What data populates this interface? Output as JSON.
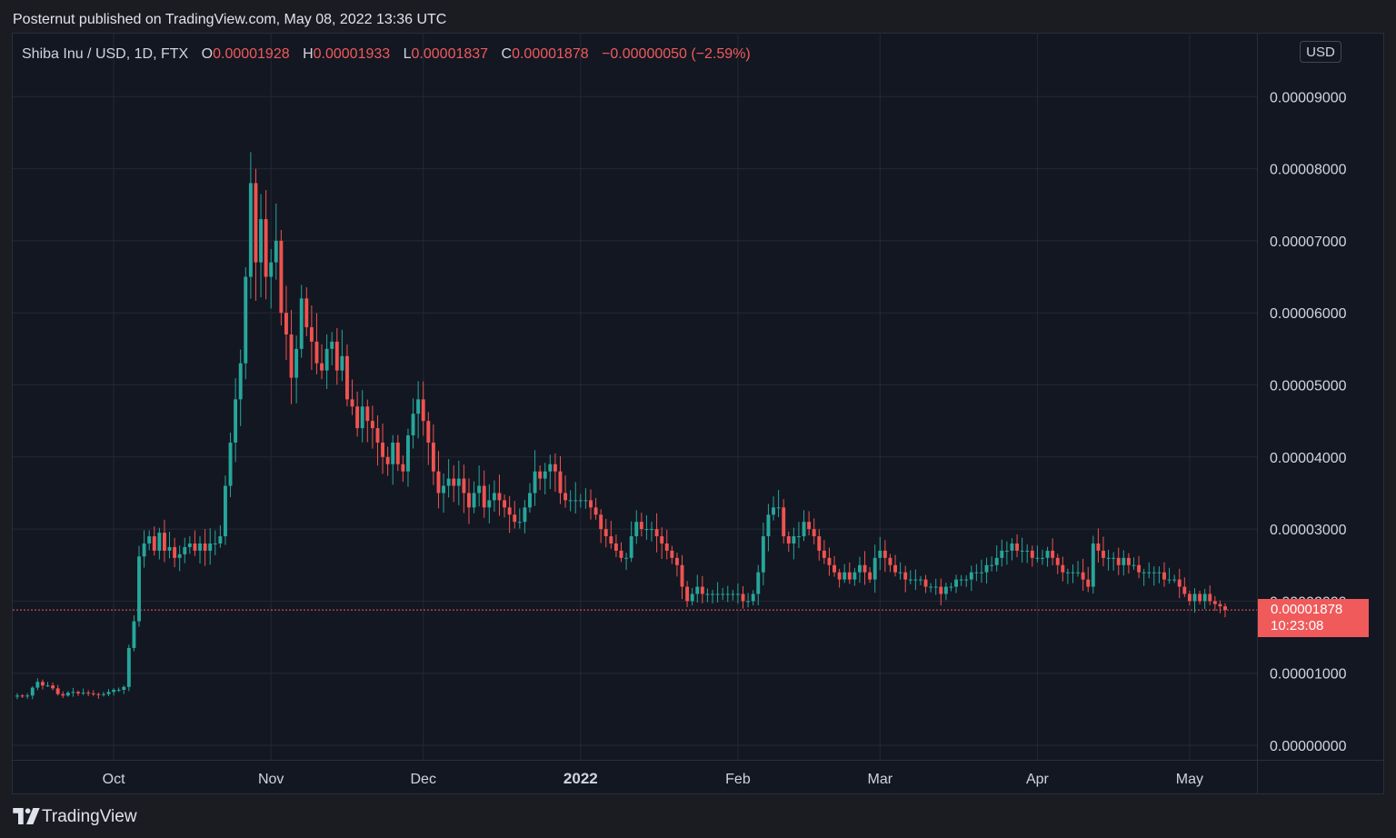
{
  "header": {
    "published_text": "Posternut published on TradingView.com, May 08, 2022 13:36 UTC"
  },
  "legend": {
    "symbol": "Shiba Inu / USD, 1D, FTX",
    "open_label": "O",
    "open_value": "0.00001928",
    "high_label": "H",
    "high_value": "0.00001933",
    "low_label": "L",
    "low_value": "0.00001837",
    "close_label": "C",
    "close_value": "0.00001878",
    "change": "−0.00000050 (−2.59%)"
  },
  "currency_button": "USD",
  "price_badge": {
    "price": "0.00001878",
    "countdown": "10:23:08"
  },
  "footer": {
    "brand": "TradingView",
    "logo_icon": "tradingview-logo-icon"
  },
  "colors": {
    "up": "#26a69a",
    "down": "#ef5350",
    "background": "#131722",
    "grid": "#242836",
    "last_price_line": "#f05a5a"
  },
  "chart_data": {
    "type": "candlestick",
    "title": "",
    "symbol": "Shiba Inu / USD, 1D, FTX",
    "currency": "USD",
    "ylim": [
      0,
      0.0001
    ],
    "y_ticks": [
      0,
      1e-05,
      2e-05,
      3e-05,
      4e-05,
      5e-05,
      6e-05,
      7e-05,
      8e-05,
      9e-05
    ],
    "y_tick_labels": [
      "0.00000000",
      "0.00001000",
      "0.00002000",
      "0.00003000",
      "0.00004000",
      "0.00005000",
      "0.00006000",
      "0.00007000",
      "0.00008000",
      "0.00009000"
    ],
    "x_ticks": [
      {
        "label": "Oct",
        "date": "2021-10-01",
        "bold": false
      },
      {
        "label": "Nov",
        "date": "2021-11-01",
        "bold": false
      },
      {
        "label": "Dec",
        "date": "2021-12-01",
        "bold": false
      },
      {
        "label": "2022",
        "date": "2022-01-01",
        "bold": true
      },
      {
        "label": "Feb",
        "date": "2022-02-01",
        "bold": false
      },
      {
        "label": "Mar",
        "date": "2022-03-01",
        "bold": false
      },
      {
        "label": "Apr",
        "date": "2022-04-01",
        "bold": false
      },
      {
        "label": "May",
        "date": "2022-05-01",
        "bold": false
      }
    ],
    "x_range": [
      "2021-09-12",
      "2022-05-08"
    ],
    "last_close": 1.878e-05,
    "grid": true,
    "close_series": [
      [
        "2021-09-12",
        6.9e-06
      ],
      [
        "2021-09-13",
        6.8e-06
      ],
      [
        "2021-09-14",
        6.9e-06
      ],
      [
        "2021-09-15",
        8e-06
      ],
      [
        "2021-09-16",
        8.8e-06
      ],
      [
        "2021-09-17",
        8.3e-06
      ],
      [
        "2021-09-18",
        8.3e-06
      ],
      [
        "2021-09-19",
        7.9e-06
      ],
      [
        "2021-09-20",
        7.1e-06
      ],
      [
        "2021-09-21",
        6.9e-06
      ],
      [
        "2021-09-22",
        7.3e-06
      ],
      [
        "2021-09-23",
        7.4e-06
      ],
      [
        "2021-09-24",
        7.2e-06
      ],
      [
        "2021-09-25",
        7.3e-06
      ],
      [
        "2021-09-26",
        7.2e-06
      ],
      [
        "2021-09-27",
        7.1e-06
      ],
      [
        "2021-09-28",
        7e-06
      ],
      [
        "2021-09-29",
        7.1e-06
      ],
      [
        "2021-09-30",
        7.4e-06
      ],
      [
        "2021-10-01",
        7.7e-06
      ],
      [
        "2021-10-02",
        7.7e-06
      ],
      [
        "2021-10-03",
        8.1e-06
      ],
      [
        "2021-10-04",
        1.35e-05
      ],
      [
        "2021-10-05",
        1.72e-05
      ],
      [
        "2021-10-06",
        2.62e-05
      ],
      [
        "2021-10-07",
        2.8e-05
      ],
      [
        "2021-10-08",
        2.9e-05
      ],
      [
        "2021-10-09",
        2.7e-05
      ],
      [
        "2021-10-10",
        2.95e-05
      ],
      [
        "2021-10-11",
        2.7e-05
      ],
      [
        "2021-10-12",
        2.75e-05
      ],
      [
        "2021-10-13",
        2.6e-05
      ],
      [
        "2021-10-14",
        2.65e-05
      ],
      [
        "2021-10-15",
        2.75e-05
      ],
      [
        "2021-10-16",
        2.8e-05
      ],
      [
        "2021-10-17",
        2.7e-05
      ],
      [
        "2021-10-18",
        2.8e-05
      ],
      [
        "2021-10-19",
        2.7e-05
      ],
      [
        "2021-10-20",
        2.8e-05
      ],
      [
        "2021-10-21",
        2.8e-05
      ],
      [
        "2021-10-22",
        2.9e-05
      ],
      [
        "2021-10-23",
        3.6e-05
      ],
      [
        "2021-10-24",
        4.2e-05
      ],
      [
        "2021-10-25",
        4.8e-05
      ],
      [
        "2021-10-26",
        5.3e-05
      ],
      [
        "2021-10-27",
        6.5e-05
      ],
      [
        "2021-10-28",
        7.8e-05
      ],
      [
        "2021-10-29",
        6.7e-05
      ],
      [
        "2021-10-30",
        7.3e-05
      ],
      [
        "2021-10-31",
        6.5e-05
      ],
      [
        "2021-11-01",
        6.7e-05
      ],
      [
        "2021-11-02",
        7e-05
      ],
      [
        "2021-11-03",
        6e-05
      ],
      [
        "2021-11-04",
        5.7e-05
      ],
      [
        "2021-11-05",
        5.1e-05
      ],
      [
        "2021-11-06",
        5.5e-05
      ],
      [
        "2021-11-07",
        6.2e-05
      ],
      [
        "2021-11-08",
        5.8e-05
      ],
      [
        "2021-11-09",
        5.6e-05
      ],
      [
        "2021-11-10",
        5.3e-05
      ],
      [
        "2021-11-11",
        5.2e-05
      ],
      [
        "2021-11-12",
        5.5e-05
      ],
      [
        "2021-11-13",
        5.6e-05
      ],
      [
        "2021-11-14",
        5.2e-05
      ],
      [
        "2021-11-15",
        5.4e-05
      ],
      [
        "2021-11-16",
        4.8e-05
      ],
      [
        "2021-11-17",
        4.7e-05
      ],
      [
        "2021-11-18",
        4.4e-05
      ],
      [
        "2021-11-19",
        4.7e-05
      ],
      [
        "2021-11-20",
        4.5e-05
      ],
      [
        "2021-11-21",
        4.4e-05
      ],
      [
        "2021-11-22",
        4.2e-05
      ],
      [
        "2021-11-23",
        4e-05
      ],
      [
        "2021-11-24",
        3.9e-05
      ],
      [
        "2021-11-25",
        4.2e-05
      ],
      [
        "2021-11-26",
        3.9e-05
      ],
      [
        "2021-11-27",
        3.8e-05
      ],
      [
        "2021-11-28",
        4.3e-05
      ],
      [
        "2021-11-29",
        4.6e-05
      ],
      [
        "2021-11-30",
        4.8e-05
      ],
      [
        "2021-12-01",
        4.5e-05
      ],
      [
        "2021-12-02",
        4.2e-05
      ],
      [
        "2021-12-03",
        3.8e-05
      ],
      [
        "2021-12-04",
        3.5e-05
      ],
      [
        "2021-12-05",
        3.6e-05
      ],
      [
        "2021-12-06",
        3.7e-05
      ],
      [
        "2021-12-07",
        3.6e-05
      ],
      [
        "2021-12-08",
        3.7e-05
      ],
      [
        "2021-12-09",
        3.5e-05
      ],
      [
        "2021-12-10",
        3.3e-05
      ],
      [
        "2021-12-11",
        3.5e-05
      ],
      [
        "2021-12-12",
        3.6e-05
      ],
      [
        "2021-12-13",
        3.3e-05
      ],
      [
        "2021-12-14",
        3.4e-05
      ],
      [
        "2021-12-15",
        3.5e-05
      ],
      [
        "2021-12-16",
        3.4e-05
      ],
      [
        "2021-12-17",
        3.3e-05
      ],
      [
        "2021-12-18",
        3.2e-05
      ],
      [
        "2021-12-19",
        3.1e-05
      ],
      [
        "2021-12-20",
        3.1e-05
      ],
      [
        "2021-12-21",
        3.3e-05
      ],
      [
        "2021-12-22",
        3.5e-05
      ],
      [
        "2021-12-23",
        3.8e-05
      ],
      [
        "2021-12-24",
        3.7e-05
      ],
      [
        "2021-12-25",
        3.8e-05
      ],
      [
        "2021-12-26",
        3.9e-05
      ],
      [
        "2021-12-27",
        3.8e-05
      ],
      [
        "2021-12-28",
        3.5e-05
      ],
      [
        "2021-12-29",
        3.4e-05
      ],
      [
        "2021-12-30",
        3.4e-05
      ],
      [
        "2021-12-31",
        3.4e-05
      ],
      [
        "2022-01-01",
        3.4e-05
      ],
      [
        "2022-01-02",
        3.4e-05
      ],
      [
        "2022-01-03",
        3.3e-05
      ],
      [
        "2022-01-04",
        3.2e-05
      ],
      [
        "2022-01-05",
        3e-05
      ],
      [
        "2022-01-06",
        2.9e-05
      ],
      [
        "2022-01-07",
        2.8e-05
      ],
      [
        "2022-01-08",
        2.7e-05
      ],
      [
        "2022-01-09",
        2.6e-05
      ],
      [
        "2022-01-10",
        2.6e-05
      ],
      [
        "2022-01-11",
        2.9e-05
      ],
      [
        "2022-01-12",
        3.1e-05
      ],
      [
        "2022-01-13",
        3e-05
      ],
      [
        "2022-01-14",
        3e-05
      ],
      [
        "2022-01-15",
        3e-05
      ],
      [
        "2022-01-16",
        2.9e-05
      ],
      [
        "2022-01-17",
        2.8e-05
      ],
      [
        "2022-01-18",
        2.7e-05
      ],
      [
        "2022-01-19",
        2.6e-05
      ],
      [
        "2022-01-20",
        2.5e-05
      ],
      [
        "2022-01-21",
        2.2e-05
      ],
      [
        "2022-01-22",
        2e-05
      ],
      [
        "2022-01-23",
        2.1e-05
      ],
      [
        "2022-01-24",
        2.2e-05
      ],
      [
        "2022-01-25",
        2.1e-05
      ],
      [
        "2022-01-26",
        2.1e-05
      ],
      [
        "2022-01-27",
        2.1e-05
      ],
      [
        "2022-01-28",
        2.1e-05
      ],
      [
        "2022-01-29",
        2.1e-05
      ],
      [
        "2022-01-30",
        2.1e-05
      ],
      [
        "2022-01-31",
        2.1e-05
      ],
      [
        "2022-02-01",
        2.1e-05
      ],
      [
        "2022-02-02",
        2e-05
      ],
      [
        "2022-02-03",
        2e-05
      ],
      [
        "2022-02-04",
        2.1e-05
      ],
      [
        "2022-02-05",
        2.4e-05
      ],
      [
        "2022-02-06",
        2.9e-05
      ],
      [
        "2022-02-07",
        3.2e-05
      ],
      [
        "2022-02-08",
        3.3e-05
      ],
      [
        "2022-02-09",
        3.3e-05
      ],
      [
        "2022-02-10",
        2.9e-05
      ],
      [
        "2022-02-11",
        2.8e-05
      ],
      [
        "2022-02-12",
        2.9e-05
      ],
      [
        "2022-02-13",
        2.9e-05
      ],
      [
        "2022-02-14",
        3.1e-05
      ],
      [
        "2022-02-15",
        3e-05
      ],
      [
        "2022-02-16",
        2.9e-05
      ],
      [
        "2022-02-17",
        2.7e-05
      ],
      [
        "2022-02-18",
        2.6e-05
      ],
      [
        "2022-02-19",
        2.5e-05
      ],
      [
        "2022-02-20",
        2.4e-05
      ],
      [
        "2022-02-21",
        2.3e-05
      ],
      [
        "2022-02-22",
        2.4e-05
      ],
      [
        "2022-02-23",
        2.3e-05
      ],
      [
        "2022-02-24",
        2.4e-05
      ],
      [
        "2022-02-25",
        2.5e-05
      ],
      [
        "2022-02-26",
        2.4e-05
      ],
      [
        "2022-02-27",
        2.3e-05
      ],
      [
        "2022-02-28",
        2.6e-05
      ],
      [
        "2022-03-01",
        2.7e-05
      ],
      [
        "2022-03-02",
        2.6e-05
      ],
      [
        "2022-03-03",
        2.5e-05
      ],
      [
        "2022-03-04",
        2.4e-05
      ],
      [
        "2022-03-05",
        2.4e-05
      ],
      [
        "2022-03-06",
        2.3e-05
      ],
      [
        "2022-03-07",
        2.3e-05
      ],
      [
        "2022-03-08",
        2.3e-05
      ],
      [
        "2022-03-09",
        2.3e-05
      ],
      [
        "2022-03-10",
        2.2e-05
      ],
      [
        "2022-03-11",
        2.2e-05
      ],
      [
        "2022-03-12",
        2.2e-05
      ],
      [
        "2022-03-13",
        2.1e-05
      ],
      [
        "2022-03-14",
        2.2e-05
      ],
      [
        "2022-03-15",
        2.2e-05
      ],
      [
        "2022-03-16",
        2.3e-05
      ],
      [
        "2022-03-17",
        2.3e-05
      ],
      [
        "2022-03-18",
        2.3e-05
      ],
      [
        "2022-03-19",
        2.4e-05
      ],
      [
        "2022-03-20",
        2.4e-05
      ],
      [
        "2022-03-21",
        2.4e-05
      ],
      [
        "2022-03-22",
        2.5e-05
      ],
      [
        "2022-03-23",
        2.5e-05
      ],
      [
        "2022-03-24",
        2.6e-05
      ],
      [
        "2022-03-25",
        2.7e-05
      ],
      [
        "2022-03-26",
        2.7e-05
      ],
      [
        "2022-03-27",
        2.8e-05
      ],
      [
        "2022-03-28",
        2.7e-05
      ],
      [
        "2022-03-29",
        2.7e-05
      ],
      [
        "2022-03-30",
        2.7e-05
      ],
      [
        "2022-03-31",
        2.6e-05
      ],
      [
        "2022-04-01",
        2.6e-05
      ],
      [
        "2022-04-02",
        2.6e-05
      ],
      [
        "2022-04-03",
        2.7e-05
      ],
      [
        "2022-04-04",
        2.6e-05
      ],
      [
        "2022-04-05",
        2.5e-05
      ],
      [
        "2022-04-06",
        2.4e-05
      ],
      [
        "2022-04-07",
        2.4e-05
      ],
      [
        "2022-04-08",
        2.4e-05
      ],
      [
        "2022-04-09",
        2.4e-05
      ],
      [
        "2022-04-10",
        2.3e-05
      ],
      [
        "2022-04-11",
        2.2e-05
      ],
      [
        "2022-04-12",
        2.8e-05
      ],
      [
        "2022-04-13",
        2.7e-05
      ],
      [
        "2022-04-14",
        2.6e-05
      ],
      [
        "2022-04-15",
        2.6e-05
      ],
      [
        "2022-04-16",
        2.6e-05
      ],
      [
        "2022-04-17",
        2.5e-05
      ],
      [
        "2022-04-18",
        2.6e-05
      ],
      [
        "2022-04-19",
        2.5e-05
      ],
      [
        "2022-04-20",
        2.5e-05
      ],
      [
        "2022-04-21",
        2.4e-05
      ],
      [
        "2022-04-22",
        2.4e-05
      ],
      [
        "2022-04-23",
        2.4e-05
      ],
      [
        "2022-04-24",
        2.4e-05
      ],
      [
        "2022-04-25",
        2.4e-05
      ],
      [
        "2022-04-26",
        2.3e-05
      ],
      [
        "2022-04-27",
        2.3e-05
      ],
      [
        "2022-04-28",
        2.3e-05
      ],
      [
        "2022-04-29",
        2.2e-05
      ],
      [
        "2022-04-30",
        2.1e-05
      ],
      [
        "2022-05-01",
        2e-05
      ],
      [
        "2022-05-02",
        2.1e-05
      ],
      [
        "2022-05-03",
        2e-05
      ],
      [
        "2022-05-04",
        2.1e-05
      ],
      [
        "2022-05-05",
        2e-05
      ],
      [
        "2022-05-06",
        1.96e-05
      ],
      [
        "2022-05-07",
        1.928e-05
      ],
      [
        "2022-05-08",
        1.878e-05
      ]
    ]
  }
}
